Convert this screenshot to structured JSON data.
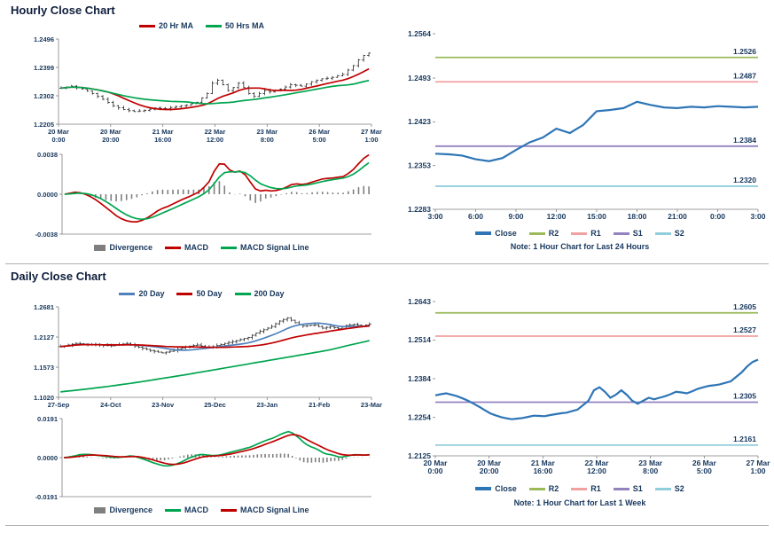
{
  "page": {
    "background": "#ffffff",
    "text_color": "#17375d"
  },
  "sections": [
    {
      "title": "Hourly Close Chart"
    },
    {
      "title": "Daily Close Chart"
    }
  ],
  "chart_data": [
    {
      "id": "hourly-price",
      "type": "candle",
      "title": "Hourly Close Chart",
      "ylim": [
        1.2205,
        1.2496
      ],
      "y_ticks": [
        "1.2496",
        "1.2399",
        "1.2302",
        "1.2205"
      ],
      "x_ticks": [
        [
          "20 Mar",
          "0:00"
        ],
        [
          "20 Mar",
          "20:00"
        ],
        [
          "21 Mar",
          "16:00"
        ],
        [
          "22 Mar",
          "12:00"
        ],
        [
          "23 Mar",
          "8:00"
        ],
        [
          "26 Mar",
          "5:00"
        ],
        [
          "27 Mar",
          "1:00"
        ]
      ],
      "close": [
        1.2328,
        1.2332,
        1.2335,
        1.233,
        1.2325,
        1.2318,
        1.231,
        1.23,
        1.229,
        1.2279,
        1.2268,
        1.2261,
        1.2255,
        1.2251,
        1.2248,
        1.225,
        1.2252,
        1.2256,
        1.226,
        1.2259,
        1.2258,
        1.2262,
        1.2265,
        1.2268,
        1.227,
        1.2275,
        1.228,
        1.2295,
        1.231,
        1.2345,
        1.2355,
        1.234,
        1.232,
        1.233,
        1.2345,
        1.233,
        1.231,
        1.23,
        1.231,
        1.232,
        1.2315,
        1.232,
        1.2325,
        1.2332,
        1.234,
        1.2338,
        1.2335,
        1.2342,
        1.235,
        1.2355,
        1.236,
        1.2362,
        1.2365,
        1.237,
        1.2375,
        1.239,
        1.2405,
        1.2425,
        1.244,
        1.2448
      ],
      "candle_color": "#262626",
      "ma": [
        {
          "label": "20 Hr MA",
          "color": "#c00000",
          "window": 10
        },
        {
          "label": "50 Hrs MA",
          "color": "#00a550",
          "window": 25
        }
      ],
      "legend": [
        {
          "label": "20 Hr MA",
          "color": "#c00000"
        },
        {
          "label": "50 Hrs MA",
          "color": "#00a550"
        }
      ]
    },
    {
      "id": "hourly-macd",
      "type": "macd",
      "source": 0,
      "ylim": [
        -0.0038,
        0.0038
      ],
      "y_ticks": [
        "0.0038",
        "0.0000",
        "-0.0038"
      ],
      "fast": 5,
      "slow": 15,
      "signal": 5,
      "macd_color": "#c00000",
      "signal_color": "#00a550",
      "divergence_color": "#7f7f7f",
      "legend": [
        {
          "label": "Divergence",
          "color": "#7f7f7f",
          "swatch": "bar"
        },
        {
          "label": "MACD",
          "color": "#c00000"
        },
        {
          "label": "MACD Signal Line",
          "color": "#00a550"
        }
      ]
    },
    {
      "id": "hourly-sr",
      "type": "sr",
      "tick_font": 8.5,
      "ylim": [
        1.2283,
        1.2564
      ],
      "y_ticks": [
        "1.2564",
        "1.2493",
        "1.2423",
        "1.2353",
        "1.2283"
      ],
      "x_ticks": [
        [
          "3:00"
        ],
        [
          "6:00"
        ],
        [
          "9:00"
        ],
        [
          "12:00"
        ],
        [
          "15:00"
        ],
        [
          "18:00"
        ],
        [
          "21:00"
        ],
        [
          "0:00"
        ],
        [
          "3:00"
        ]
      ],
      "close": [
        1.2372,
        1.2371,
        1.2369,
        1.2363,
        1.236,
        1.2365,
        1.2378,
        1.239,
        1.2398,
        1.2412,
        1.2405,
        1.2418,
        1.244,
        1.2442,
        1.2445,
        1.2455,
        1.245,
        1.2446,
        1.2445,
        1.2447,
        1.2446,
        1.2448,
        1.2447,
        1.2446,
        1.2447
      ],
      "close_color": "#2e75b6",
      "levels": [
        {
          "label": "R2",
          "value": 1.2526,
          "value_label": "1.2526",
          "color": "#9bbb59"
        },
        {
          "label": "R1",
          "value": 1.2487,
          "value_label": "1.2487",
          "color": "#f1a1a1"
        },
        {
          "label": "S1",
          "value": 1.2384,
          "value_label": "1.2384",
          "color": "#9283be"
        },
        {
          "label": "S2",
          "value": 1.232,
          "value_label": "1.2320",
          "color": "#92cddc"
        }
      ],
      "legend": [
        {
          "label": "Close",
          "color": "#2e75b6",
          "swatch": "thick"
        },
        {
          "label": "R2",
          "color": "#9bbb59"
        },
        {
          "label": "R1",
          "color": "#f1a1a1"
        },
        {
          "label": "S1",
          "color": "#9283be"
        },
        {
          "label": "S2",
          "color": "#92cddc"
        }
      ],
      "note": "Note: 1 Hour Chart for Last 24 Hours"
    },
    {
      "id": "daily-price",
      "type": "candle",
      "title": "Daily Close Chart",
      "ylim": [
        1.102,
        1.2681
      ],
      "y_ticks": [
        "1.2681",
        "1.2127",
        "1.1573",
        "1.1020"
      ],
      "x_ticks": [
        [
          "27-Sep"
        ],
        [
          "24-Oct"
        ],
        [
          "23-Nov"
        ],
        [
          "25-Dec"
        ],
        [
          "23-Jan"
        ],
        [
          "21-Feb"
        ],
        [
          "23-Mar"
        ]
      ],
      "close": [
        1.195,
        1.1965,
        1.198,
        1.1995,
        1.201,
        1.2004,
        1.1998,
        1.1991,
        1.1985,
        1.1981,
        1.1977,
        1.1973,
        1.1969,
        1.1965,
        1.1976,
        1.1988,
        1.1999,
        1.201,
        1.1987,
        1.1963,
        1.194,
        1.192,
        1.19,
        1.188,
        1.1865,
        1.185,
        1.1835,
        1.185,
        1.1865,
        1.188,
        1.1903,
        1.1927,
        1.195,
        1.196,
        1.197,
        1.198,
        1.196,
        1.194,
        1.1945,
        1.195,
        1.197,
        1.199,
        1.201,
        1.2027,
        1.2043,
        1.206,
        1.208,
        1.21,
        1.212,
        1.216,
        1.22,
        1.223,
        1.226,
        1.229,
        1.232,
        1.237,
        1.242,
        1.245,
        1.248,
        1.2435,
        1.239,
        1.236,
        1.233,
        1.2337,
        1.2343,
        1.235,
        1.232,
        1.229,
        1.2305,
        1.232,
        1.23,
        1.228,
        1.231,
        1.234,
        1.235,
        1.236,
        1.2345,
        1.233,
        1.2348,
        1.2365
      ],
      "candle_color": "#262626",
      "ma": [
        {
          "label": "20 Day",
          "color": "#4f81bd",
          "window": 12
        },
        {
          "label": "50 Day",
          "color": "#c00000",
          "window": 31
        },
        {
          "label": "200 Day",
          "color": "#00a550",
          "values": [
            1.112,
            1.116,
            1.1205,
            1.1255,
            1.131,
            1.137,
            1.143,
            1.1495,
            1.156,
            1.1625,
            1.169,
            1.1755,
            1.182,
            1.1885,
            1.1975,
            1.206
          ]
        }
      ],
      "legend": [
        {
          "label": "20 Day",
          "color": "#4f81bd"
        },
        {
          "label": "50 Day",
          "color": "#c00000"
        },
        {
          "label": "200 Day",
          "color": "#00a550"
        }
      ]
    },
    {
      "id": "daily-macd",
      "type": "macd",
      "source": 3,
      "ylim": [
        -0.0191,
        0.0191
      ],
      "y_ticks": [
        "0.0191",
        "0.0000",
        "-0.0191"
      ],
      "fast": 7,
      "slow": 17,
      "signal": 6,
      "macd_color": "#00a550",
      "signal_color": "#c00000",
      "divergence_color": "#7f7f7f",
      "legend": [
        {
          "label": "Divergence",
          "color": "#7f7f7f",
          "swatch": "bar"
        },
        {
          "label": "MACD",
          "color": "#00a550"
        },
        {
          "label": "MACD Signal Line",
          "color": "#c00000"
        }
      ]
    },
    {
      "id": "daily-sr",
      "type": "sr",
      "tick_font": 8.5,
      "ylim": [
        1.2125,
        1.2643
      ],
      "y_ticks": [
        "1.2643",
        "1.2514",
        "1.2384",
        "1.2254",
        "1.2125"
      ],
      "x_ticks": [
        [
          "20 Mar",
          "0:00"
        ],
        [
          "20 Mar",
          "20:00"
        ],
        [
          "21 Mar",
          "16:00"
        ],
        [
          "22 Mar",
          "12:00"
        ],
        [
          "23 Mar",
          "8:00"
        ],
        [
          "26 Mar",
          "5:00"
        ],
        [
          "27 Mar",
          "1:00"
        ]
      ],
      "close": [
        1.2328,
        1.2332,
        1.2335,
        1.233,
        1.2325,
        1.2318,
        1.231,
        1.23,
        1.229,
        1.2279,
        1.2268,
        1.2261,
        1.2255,
        1.2251,
        1.2248,
        1.225,
        1.2252,
        1.2256,
        1.226,
        1.2259,
        1.2258,
        1.2262,
        1.2265,
        1.2268,
        1.227,
        1.2275,
        1.228,
        1.2295,
        1.231,
        1.2345,
        1.2355,
        1.234,
        1.232,
        1.233,
        1.2345,
        1.233,
        1.231,
        1.23,
        1.231,
        1.232,
        1.2315,
        1.232,
        1.2325,
        1.2332,
        1.234,
        1.2338,
        1.2335,
        1.2342,
        1.235,
        1.2355,
        1.236,
        1.2362,
        1.2365,
        1.237,
        1.2375,
        1.239,
        1.2405,
        1.2425,
        1.244,
        1.2448
      ],
      "close_color": "#2e75b6",
      "levels": [
        {
          "label": "R2",
          "value": 1.2605,
          "value_label": "1.2605",
          "color": "#9bbb59"
        },
        {
          "label": "R1",
          "value": 1.2527,
          "value_label": "1.2527",
          "color": "#f1a1a1"
        },
        {
          "label": "S1",
          "value": 1.2305,
          "value_label": "1.2305",
          "color": "#9283be"
        },
        {
          "label": "S2",
          "value": 1.2161,
          "value_label": "1.2161",
          "color": "#92cddc"
        }
      ],
      "legend": [
        {
          "label": "Close",
          "color": "#2e75b6",
          "swatch": "thick"
        },
        {
          "label": "R2",
          "color": "#9bbb59"
        },
        {
          "label": "R1",
          "color": "#f1a1a1"
        },
        {
          "label": "S1",
          "color": "#9283be"
        },
        {
          "label": "S2",
          "color": "#92cddc"
        }
      ],
      "note": "Note: 1 Hour Chart for Last 1 Week"
    }
  ]
}
